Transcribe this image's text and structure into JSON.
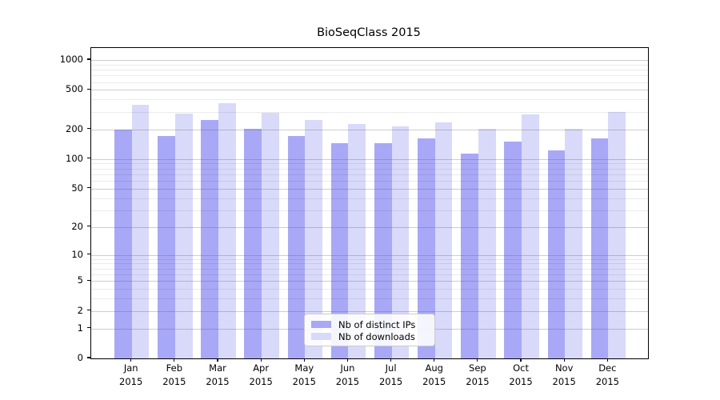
{
  "title": "BioSeqClass 2015",
  "colors": {
    "distinct_ips": "#a8a8f6",
    "downloads": "#d9d9fa",
    "grid_major": "rgba(90,90,90,0.30)",
    "grid_minor": "rgba(0,0,0,0.08)",
    "axis": "#000000",
    "legend_border": "#cccccc"
  },
  "legend": {
    "items": [
      {
        "label": "Nb of distinct IPs",
        "series": "distinct_ips"
      },
      {
        "label": "Nb of downloads",
        "series": "downloads"
      }
    ]
  },
  "x_axis": {
    "year": "2015",
    "months": [
      "Jan",
      "Feb",
      "Mar",
      "Apr",
      "May",
      "Jun",
      "Jul",
      "Aug",
      "Sep",
      "Oct",
      "Nov",
      "Dec"
    ]
  },
  "y_axis": {
    "tick_labels": [
      "1000",
      "500",
      "200",
      "100",
      "50",
      "20",
      "10",
      "5",
      "2",
      "1",
      "0"
    ]
  },
  "chart_data": {
    "type": "bar",
    "title": "BioSeqClass 2015",
    "categories": [
      "Jan 2015",
      "Feb 2015",
      "Mar 2015",
      "Apr 2015",
      "May 2015",
      "Jun 2015",
      "Jul 2015",
      "Aug 2015",
      "Sep 2015",
      "Oct 2015",
      "Nov 2015",
      "Dec 2015"
    ],
    "series": [
      {
        "name": "Nb of distinct IPs",
        "values": [
          199,
          170,
          250,
          201,
          170,
          145,
          146,
          161,
          113,
          150,
          122,
          163
        ]
      },
      {
        "name": "Nb of downloads",
        "values": [
          352,
          287,
          368,
          292,
          247,
          225,
          213,
          237,
          204,
          284,
          204,
          300
        ]
      }
    ],
    "xlabel": "",
    "ylabel": "",
    "yscale": "log1p",
    "ylim": [
      0,
      1322
    ],
    "yticks": [
      0,
      1,
      2,
      5,
      10,
      20,
      50,
      100,
      200,
      500,
      1000
    ],
    "minor_gridlines": [
      3,
      4,
      6,
      7,
      8,
      9,
      30,
      40,
      60,
      70,
      80,
      90,
      300,
      400,
      600,
      700,
      800,
      900
    ],
    "grid": "on",
    "legend_position": "lower-center"
  }
}
